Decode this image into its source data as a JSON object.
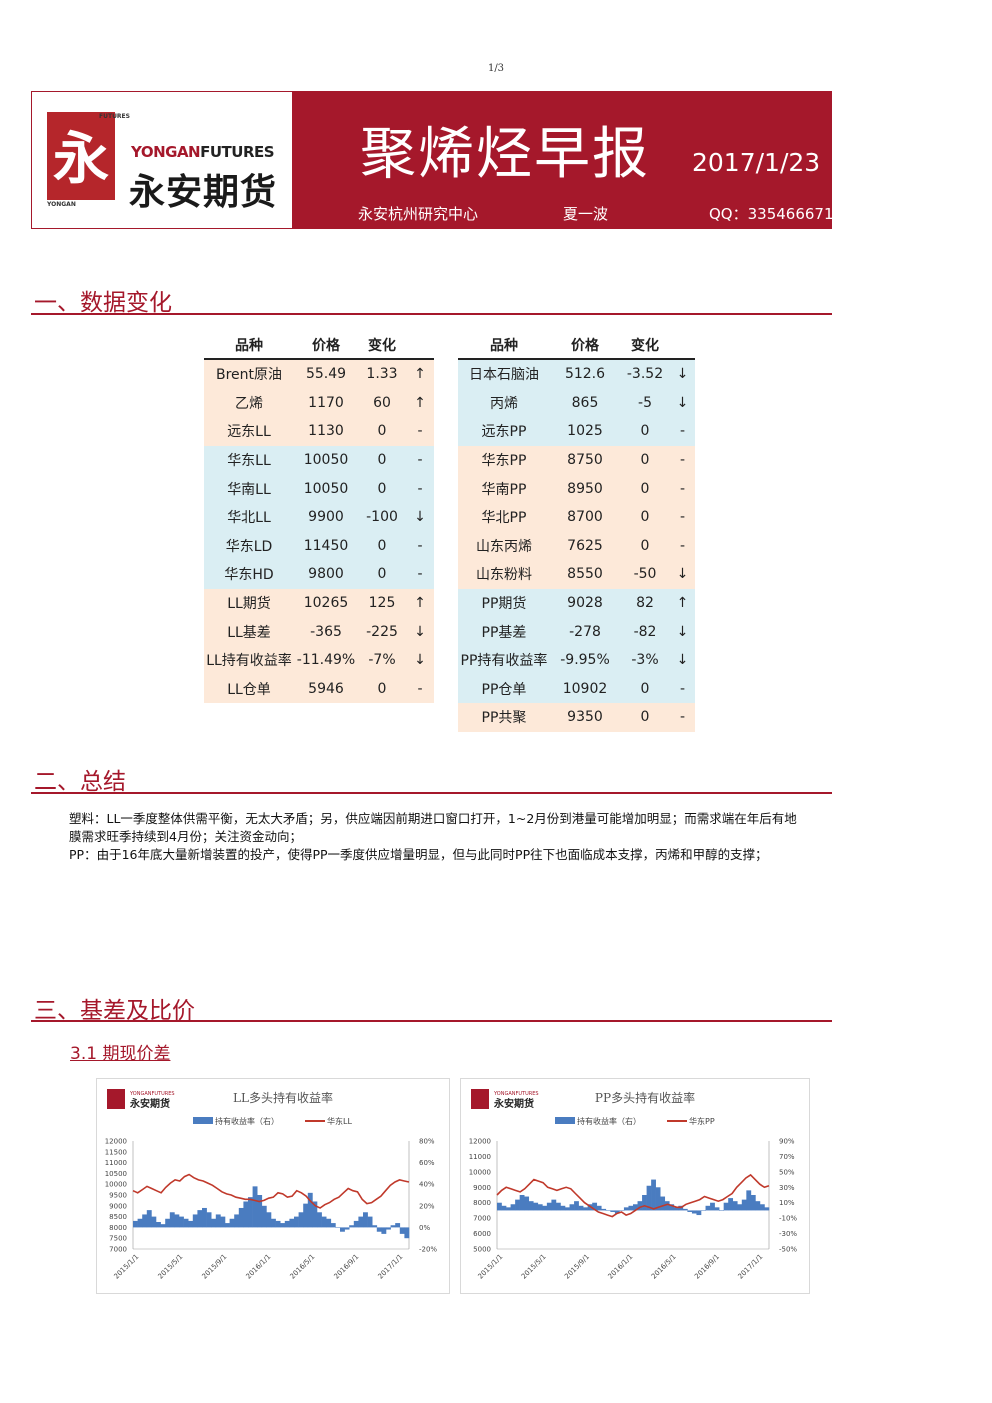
{
  "page_number": "1/3",
  "header": {
    "logo_futures_top": "FUTURES",
    "logo_en_a": "YONGAN",
    "logo_en_b": "FUTURES",
    "logo_cn": "永安期货",
    "logo_seal_glyph": "永",
    "logo_yongan_bottom": "YONGAN",
    "title": "聚烯烃早报",
    "date": "2017/1/23",
    "center": "永安杭州研究中心",
    "author": "夏一波",
    "qq": "QQ：335466671"
  },
  "sections": {
    "s1": "一、数据变化",
    "s2": "二、总结",
    "s3": "三、基差及比价",
    "s3_1": "3.1 期现价差"
  },
  "table_headers": [
    "品种",
    "价格",
    "变化"
  ],
  "left_table": [
    {
      "name": "Brent原油",
      "price": "55.49",
      "change": "1.33",
      "arrow": "↑",
      "bg": "o"
    },
    {
      "name": "乙烯",
      "price": "1170",
      "change": "60",
      "arrow": "↑",
      "bg": "o"
    },
    {
      "name": "远东LL",
      "price": "1130",
      "change": "0",
      "arrow": "-",
      "bg": "o"
    },
    {
      "name": "华东LL",
      "price": "10050",
      "change": "0",
      "arrow": "-",
      "bg": "b"
    },
    {
      "name": "华南LL",
      "price": "10050",
      "change": "0",
      "arrow": "-",
      "bg": "b"
    },
    {
      "name": "华北LL",
      "price": "9900",
      "change": "-100",
      "arrow": "↓",
      "bg": "b"
    },
    {
      "name": "华东LD",
      "price": "11450",
      "change": "0",
      "arrow": "-",
      "bg": "b"
    },
    {
      "name": "华东HD",
      "price": "9800",
      "change": "0",
      "arrow": "-",
      "bg": "b"
    },
    {
      "name": "LL期货",
      "price": "10265",
      "change": "125",
      "arrow": "↑",
      "bg": "o"
    },
    {
      "name": "LL基差",
      "price": "-365",
      "change": "-225",
      "arrow": "↓",
      "bg": "o"
    },
    {
      "name": "LL持有收益率",
      "price": "-11.49%",
      "change": "-7%",
      "arrow": "↓",
      "bg": "o"
    },
    {
      "name": "LL仓单",
      "price": "5946",
      "change": "0",
      "arrow": "-",
      "bg": "o"
    }
  ],
  "right_table": [
    {
      "name": "日本石脑油",
      "price": "512.6",
      "change": "-3.52",
      "arrow": "↓",
      "bg": "b"
    },
    {
      "name": "丙烯",
      "price": "865",
      "change": "-5",
      "arrow": "↓",
      "bg": "b"
    },
    {
      "name": "远东PP",
      "price": "1025",
      "change": "0",
      "arrow": "-",
      "bg": "b"
    },
    {
      "name": "华东PP",
      "price": "8750",
      "change": "0",
      "arrow": "-",
      "bg": "o"
    },
    {
      "name": "华南PP",
      "price": "8950",
      "change": "0",
      "arrow": "-",
      "bg": "o"
    },
    {
      "name": "华北PP",
      "price": "8700",
      "change": "0",
      "arrow": "-",
      "bg": "o"
    },
    {
      "name": "山东丙烯",
      "price": "7625",
      "change": "0",
      "arrow": "-",
      "bg": "o"
    },
    {
      "name": "山东粉料",
      "price": "8550",
      "change": "-50",
      "arrow": "↓",
      "bg": "o"
    },
    {
      "name": "PP期货",
      "price": "9028",
      "change": "82",
      "arrow": "↑",
      "bg": "b"
    },
    {
      "name": "PP基差",
      "price": "-278",
      "change": "-82",
      "arrow": "↓",
      "bg": "b"
    },
    {
      "name": "PP持有收益率",
      "price": "-9.95%",
      "change": "-3%",
      "arrow": "↓",
      "bg": "b"
    },
    {
      "name": "PP仓单",
      "price": "10902",
      "change": "0",
      "arrow": "-",
      "bg": "b"
    },
    {
      "name": "PP共聚",
      "price": "9350",
      "change": "0",
      "arrow": "-",
      "bg": "o"
    }
  ],
  "summary": [
    "塑料：LL一季度整体供需平衡，无太大矛盾；另，供应端因前期进口窗口打开，1~2月份到港量可能增加明显；而需求端在年后有地膜需求旺季持续到4月份；关注资金动向；",
    "PP：由于16年底大量新增装置的投产，使得PP一季度供应增量明显，但与此同时PP往下也面临成本支撑，丙烯和甲醇的支撑；"
  ],
  "colors": {
    "brand": "#a5182b",
    "bar": "#4a7cc0",
    "line": "#c0392b"
  },
  "chart_data": [
    {
      "type": "bar+line",
      "title": "LL多头持有收益率",
      "logo_text": "永安期货",
      "logo_small": "YONGANFUTURES",
      "series": [
        {
          "name": "持有收益率（右）",
          "kind": "bar",
          "axis": "right"
        },
        {
          "name": "华东LL",
          "kind": "line",
          "axis": "left"
        }
      ],
      "x_ticks": [
        "2015/1/1",
        "2015/5/1",
        "2015/9/1",
        "2016/1/1",
        "2016/5/1",
        "2016/9/1",
        "2017/1/1"
      ],
      "left_ticks": [
        "12000",
        "11500",
        "11000",
        "10500",
        "10000",
        "9500",
        "9000",
        "8500",
        "8000",
        "7500",
        "7000"
      ],
      "right_ticks": [
        "80%",
        "60%",
        "40%",
        "20%",
        "0%",
        "-20%"
      ],
      "ylim_left": [
        7000,
        12000
      ],
      "ylim_right": [
        -20,
        80
      ],
      "line_values": [
        9700,
        9600,
        9750,
        9900,
        9800,
        9700,
        9600,
        9850,
        10050,
        10200,
        10150,
        10350,
        10450,
        10300,
        10200,
        10150,
        10050,
        9950,
        9800,
        9650,
        9550,
        9500,
        9400,
        9350,
        9300,
        9300,
        9250,
        9200,
        9250,
        9350,
        9400,
        9600,
        9550,
        9400,
        9450,
        9700,
        9600,
        9450,
        9200,
        9000,
        8900,
        9050,
        9150,
        9300,
        9400,
        9600,
        9800,
        9700,
        9650,
        9300,
        9100,
        9150,
        9300,
        9450,
        9700,
        9950,
        10100,
        10200,
        10150,
        10100
      ],
      "bar_values": [
        6,
        8,
        12,
        16,
        10,
        5,
        3,
        8,
        14,
        12,
        10,
        8,
        6,
        12,
        16,
        18,
        14,
        8,
        12,
        10,
        4,
        8,
        12,
        18,
        24,
        28,
        38,
        30,
        20,
        14,
        8,
        6,
        4,
        6,
        8,
        10,
        14,
        22,
        32,
        24,
        14,
        10,
        8,
        4,
        0,
        -4,
        -2,
        2,
        6,
        10,
        14,
        10,
        2,
        -4,
        -6,
        -2,
        2,
        4,
        -6,
        -10
      ]
    },
    {
      "type": "bar+line",
      "title": "PP多头持有收益率",
      "logo_text": "永安期货",
      "logo_small": "YONGANFUTURES",
      "series": [
        {
          "name": "持有收益率（右）",
          "kind": "bar",
          "axis": "right"
        },
        {
          "name": "华东PP",
          "kind": "line",
          "axis": "left"
        }
      ],
      "x_ticks": [
        "2015/1/1",
        "2015/5/1",
        "2015/9/1",
        "2016/1/1",
        "2016/5/1",
        "2016/9/1",
        "2017/1/1"
      ],
      "left_ticks": [
        "12000",
        "11000",
        "10000",
        "9000",
        "8000",
        "7000",
        "6000",
        "5000"
      ],
      "right_ticks": [
        "90%",
        "70%",
        "50%",
        "30%",
        "10%",
        "-10%",
        "-30%",
        "-50%"
      ],
      "ylim_left": [
        5000,
        12000
      ],
      "ylim_right": [
        -50,
        90
      ],
      "line_values": [
        8500,
        8800,
        9000,
        8900,
        8800,
        8700,
        8900,
        9200,
        9500,
        9400,
        9300,
        9000,
        8900,
        8800,
        8900,
        9000,
        8900,
        8600,
        8300,
        8000,
        7800,
        7600,
        7400,
        7300,
        7200,
        7100,
        7300,
        7400,
        7200,
        7300,
        7500,
        7700,
        7800,
        7700,
        7600,
        7700,
        7800,
        7900,
        7800,
        7700,
        7700,
        7900,
        8000,
        8100,
        8200,
        8400,
        8300,
        8200,
        8100,
        8200,
        8400,
        8600,
        9000,
        9300,
        9600,
        9800,
        9500,
        9200,
        9000,
        9100
      ],
      "bar_values": [
        10,
        6,
        4,
        8,
        14,
        20,
        18,
        12,
        10,
        8,
        6,
        10,
        14,
        10,
        6,
        4,
        8,
        12,
        6,
        4,
        8,
        10,
        6,
        2,
        0,
        -2,
        -4,
        0,
        4,
        6,
        8,
        12,
        20,
        32,
        40,
        30,
        18,
        12,
        8,
        4,
        6,
        2,
        -2,
        -4,
        -6,
        0,
        6,
        10,
        4,
        0,
        10,
        16,
        12,
        8,
        14,
        26,
        20,
        12,
        8,
        4
      ]
    }
  ]
}
